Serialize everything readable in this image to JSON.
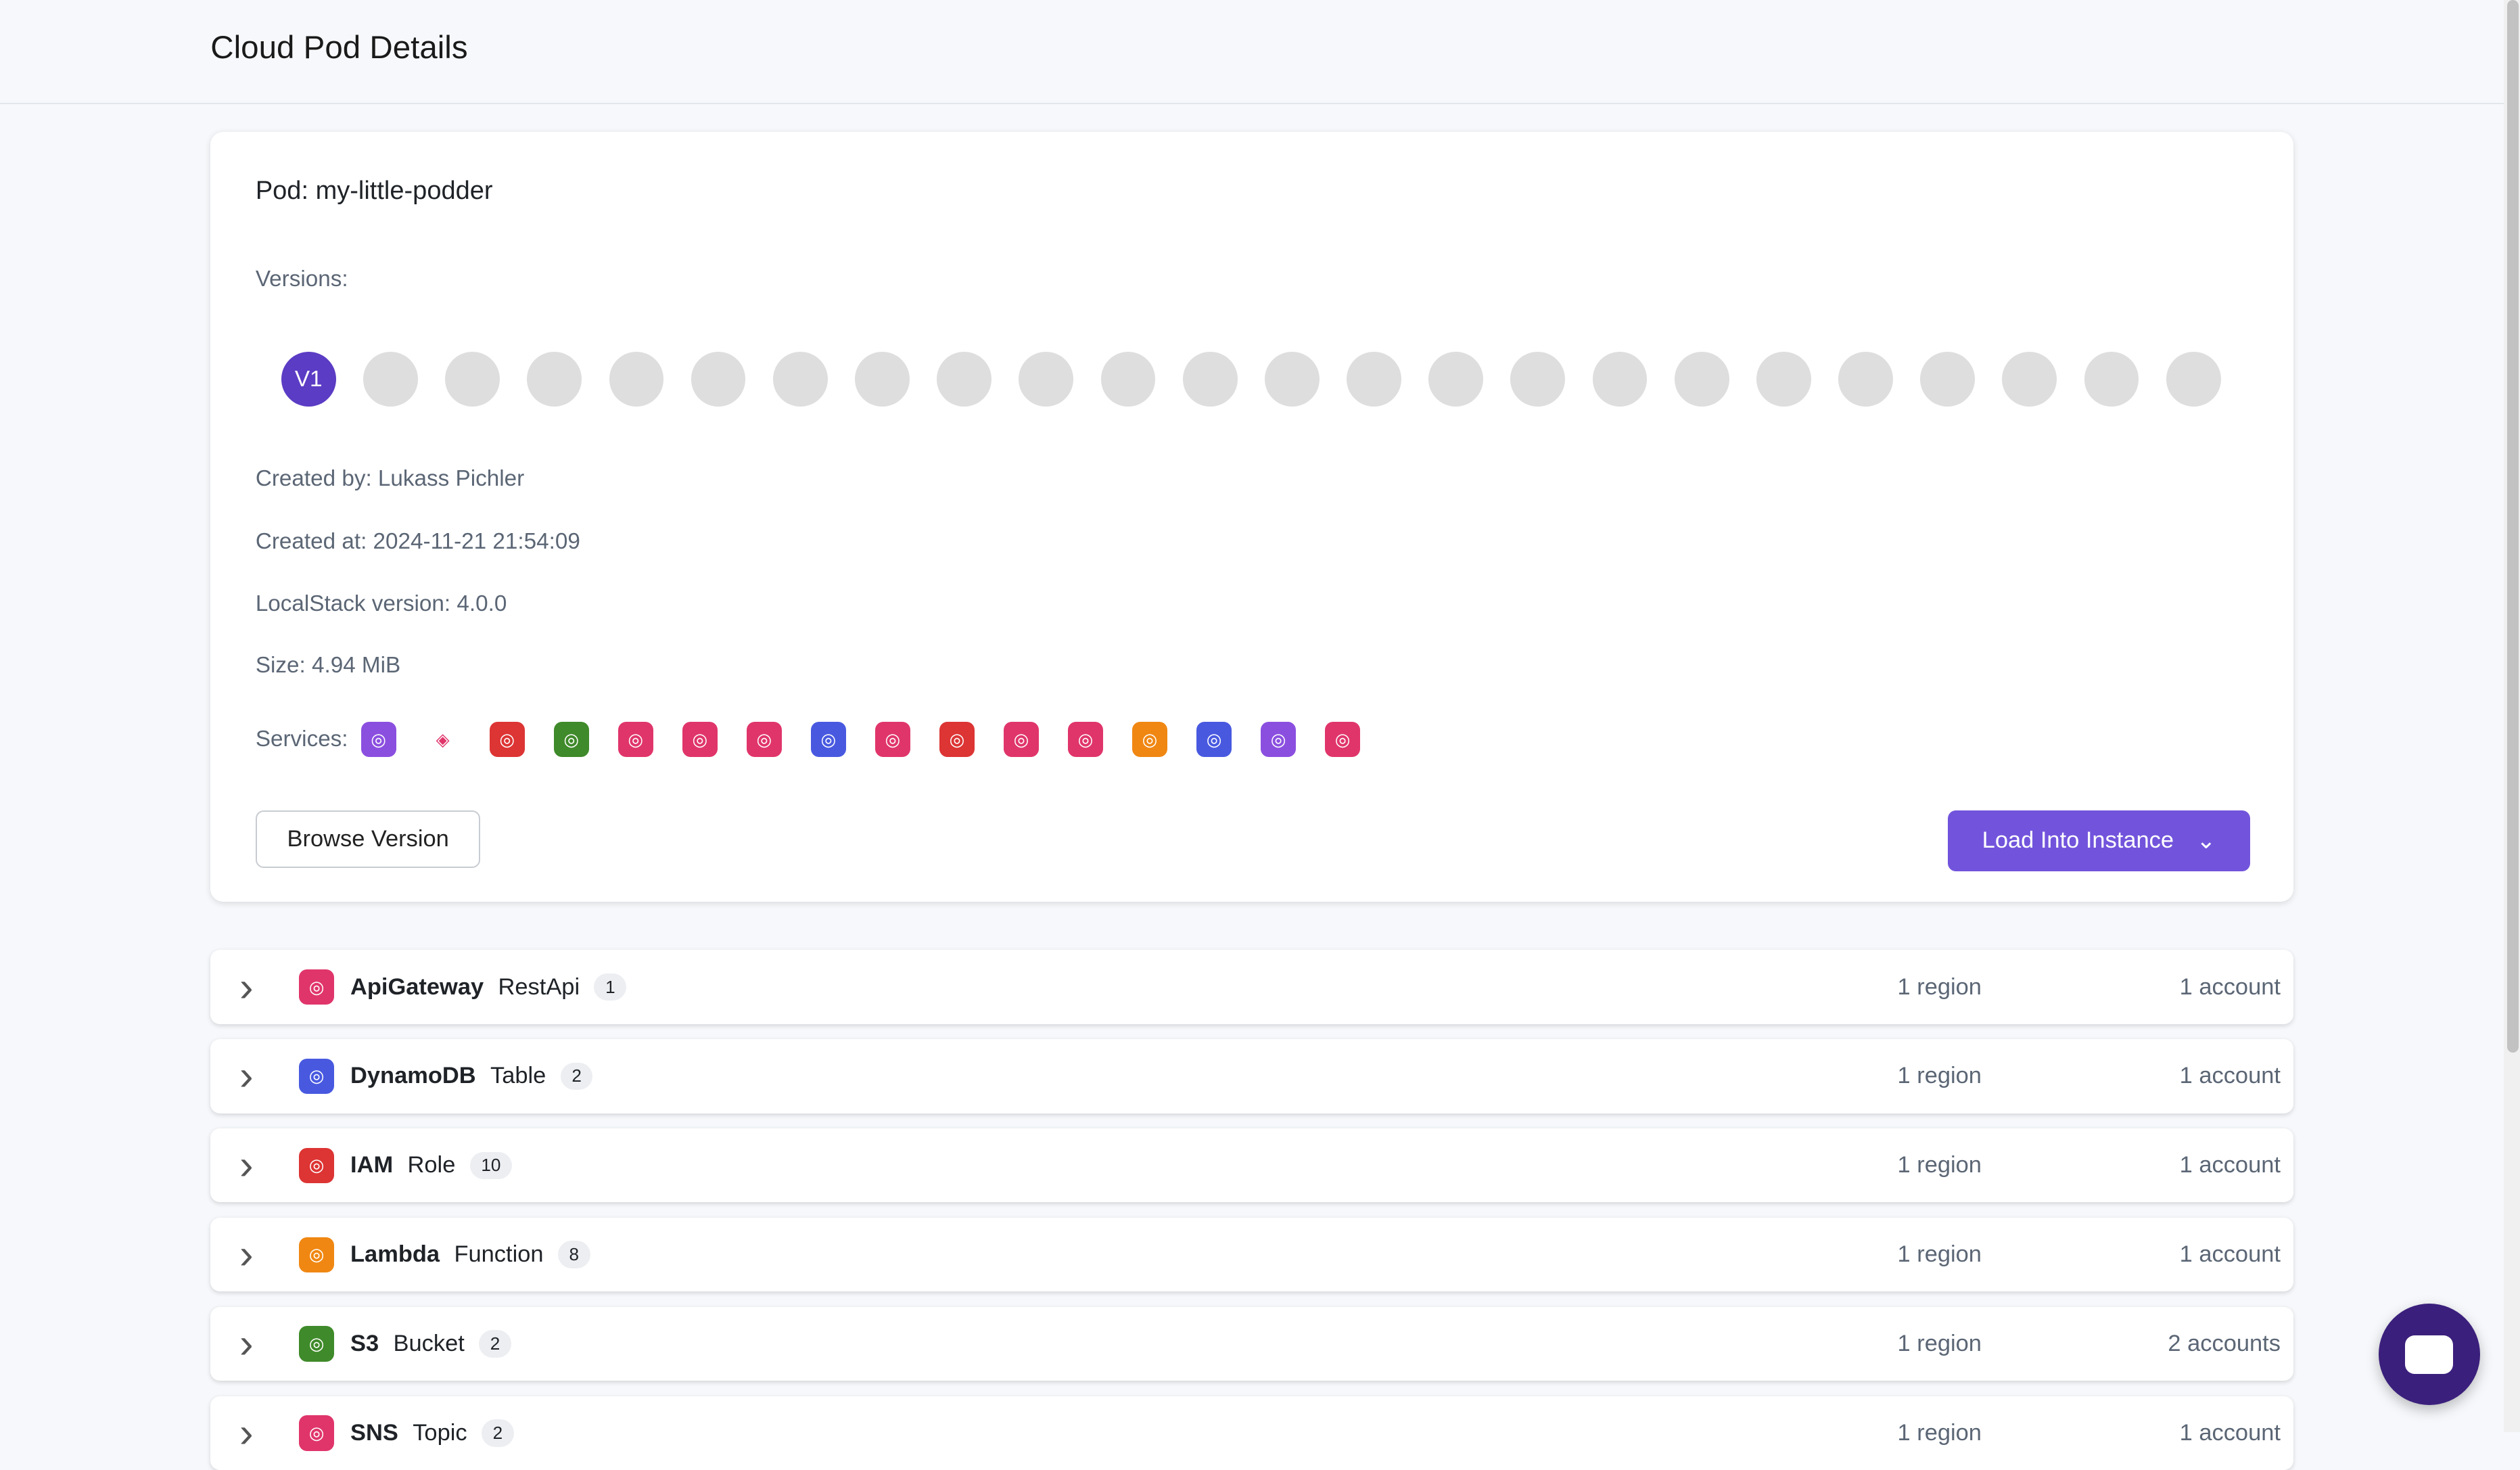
{
  "header": {
    "title": "Cloud Pod Details"
  },
  "pod": {
    "name": "Pod: my-little-podder",
    "versions_label": "Versions:",
    "active_version": "V1",
    "version_count": 24,
    "created_by": "Created by: Lukass Pichler",
    "created_at": "Created at: 2024-11-21 21:54:09",
    "localstack_version": "LocalStack version: 4.0.0",
    "size": "Size: 4.94 MiB",
    "services_label": "Services:",
    "services": [
      {
        "icon": "network-icon",
        "color": "#8b4fe0"
      },
      {
        "icon": "tag-icon",
        "color": "#e0356b"
      },
      {
        "icon": "iam-icon",
        "color": "#dd3434"
      },
      {
        "icon": "s3-bucket-icon",
        "color": "#3f8a2a"
      },
      {
        "icon": "eventbridge-icon",
        "color": "#e0356b"
      },
      {
        "icon": "step-functions-icon",
        "color": "#e0356b"
      },
      {
        "icon": "resource-groups-icon",
        "color": "#e0356b"
      },
      {
        "icon": "dynamodb-icon",
        "color": "#4859e0"
      },
      {
        "icon": "cloudwatch-icon",
        "color": "#e0356b"
      },
      {
        "icon": "scheduler-icon",
        "color": "#dd3434"
      },
      {
        "icon": "sns-icon",
        "color": "#e0356b"
      },
      {
        "icon": "apigateway-icon",
        "color": "#e0356b"
      },
      {
        "icon": "lambda-icon",
        "color": "#f08712"
      },
      {
        "icon": "dynamodb-streams-icon",
        "color": "#4859e0"
      },
      {
        "icon": "kinesis-icon",
        "color": "#8b4fe0"
      },
      {
        "icon": "apigateway-v2-icon",
        "color": "#e0356b"
      }
    ],
    "browse_label": "Browse Version",
    "load_label": "Load Into Instance"
  },
  "resources": [
    {
      "service": "ApiGateway",
      "type": "RestApi",
      "count": "1",
      "regions": "1 region",
      "accounts": "1 account",
      "color": "#e0356b",
      "icon": "apigateway-icon"
    },
    {
      "service": "DynamoDB",
      "type": "Table",
      "count": "2",
      "regions": "1 region",
      "accounts": "1 account",
      "color": "#4859e0",
      "icon": "dynamodb-icon"
    },
    {
      "service": "IAM",
      "type": "Role",
      "count": "10",
      "regions": "1 region",
      "accounts": "1 account",
      "color": "#dd3434",
      "icon": "iam-icon"
    },
    {
      "service": "Lambda",
      "type": "Function",
      "count": "8",
      "regions": "1 region",
      "accounts": "1 account",
      "color": "#f08712",
      "icon": "lambda-icon"
    },
    {
      "service": "S3",
      "type": "Bucket",
      "count": "2",
      "regions": "1 region",
      "accounts": "2 accounts",
      "color": "#3f8a2a",
      "icon": "s3-bucket-icon"
    },
    {
      "service": "SNS",
      "type": "Topic",
      "count": "2",
      "regions": "1 region",
      "accounts": "1 account",
      "color": "#e0356b",
      "icon": "sns-icon"
    }
  ]
}
